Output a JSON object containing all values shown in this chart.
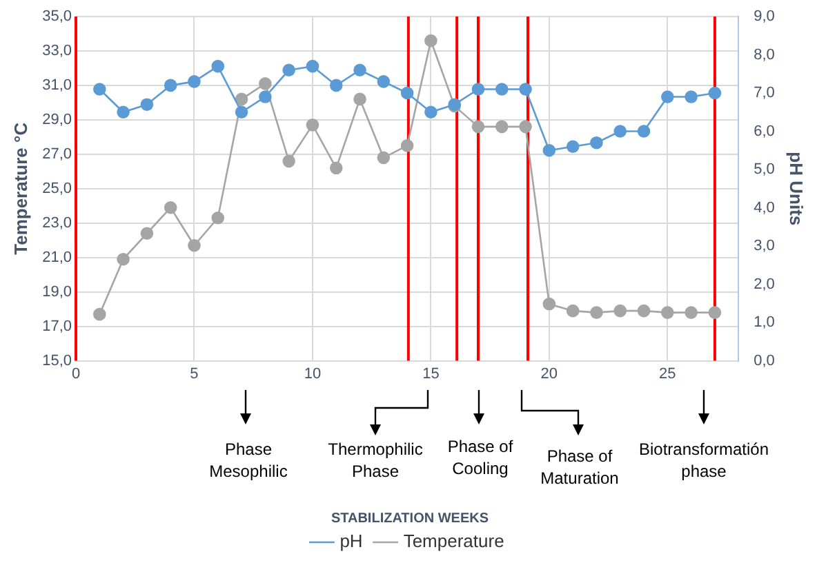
{
  "chart_data": {
    "type": "line",
    "ylabel": "Temperature °C",
    "y2label": "pH Units",
    "x": [
      1,
      2,
      3,
      4,
      5,
      6,
      7,
      8,
      9,
      10,
      11,
      12,
      13,
      14,
      15,
      16,
      17,
      18,
      19,
      20,
      21,
      22,
      23,
      24,
      25,
      26,
      27
    ],
    "series": [
      {
        "name": "Temperature",
        "color": "#a5a5a5",
        "values": [
          17.7,
          20.9,
          22.4,
          23.9,
          21.7,
          23.3,
          30.2,
          31.1,
          26.6,
          28.7,
          26.2,
          30.2,
          26.8,
          27.5,
          33.6,
          29.8,
          28.6,
          28.6,
          28.6,
          18.3,
          17.9,
          17.8,
          17.9,
          17.9,
          17.8,
          17.8,
          17.8
        ]
      },
      {
        "name": "pH",
        "color": "#5b9bd5",
        "axis": "y2",
        "values": [
          7.1,
          6.5,
          6.7,
          7.2,
          7.3,
          7.7,
          6.5,
          6.9,
          7.6,
          7.7,
          7.2,
          7.6,
          7.3,
          7.0,
          6.5,
          6.7,
          7.1,
          7.1,
          7.1,
          5.5,
          5.6,
          5.7,
          6.0,
          6.0,
          6.9,
          6.9,
          7.0
        ]
      }
    ],
    "xlim": [
      0,
      28
    ],
    "xticks": [
      0,
      5,
      10,
      15,
      20,
      25
    ],
    "ylim": [
      15,
      35
    ],
    "yticks": [
      {
        "value": 15,
        "label": "15,0"
      },
      {
        "value": 17,
        "label": "17,0"
      },
      {
        "value": 19,
        "label": "19,0"
      },
      {
        "value": 21,
        "label": "21,0"
      },
      {
        "value": 23,
        "label": "23,0"
      },
      {
        "value": 25,
        "label": "25,0"
      },
      {
        "value": 27,
        "label": "27,0"
      },
      {
        "value": 29,
        "label": "29,0"
      },
      {
        "value": 31,
        "label": "31,0"
      },
      {
        "value": 33,
        "label": "33,0"
      },
      {
        "value": 35,
        "label": "35,0"
      }
    ],
    "y2lim": [
      0,
      9
    ],
    "y2ticks": [
      {
        "value": 0,
        "label": "0,0"
      },
      {
        "value": 1,
        "label": "1,0"
      },
      {
        "value": 2,
        "label": "2,0"
      },
      {
        "value": 3,
        "label": "3,0"
      },
      {
        "value": 4,
        "label": "4,0"
      },
      {
        "value": 5,
        "label": "5,0"
      },
      {
        "value": 6,
        "label": "6,0"
      },
      {
        "value": 7,
        "label": "7,0"
      },
      {
        "value": 8,
        "label": "8,0"
      },
      {
        "value": 9,
        "label": "9,0"
      }
    ],
    "ref_lines": [
      {
        "axis": "x",
        "value": 0,
        "color": "#ff0000"
      },
      {
        "axis": "x",
        "value": 14.05,
        "color": "#ff0000"
      },
      {
        "axis": "x",
        "value": 16.1,
        "color": "#ff0000"
      },
      {
        "axis": "x",
        "value": 17,
        "color": "#ff0000"
      },
      {
        "axis": "x",
        "value": 19.1,
        "color": "#ff0000"
      },
      {
        "axis": "x",
        "value": 27,
        "color": "#ff0000"
      }
    ],
    "annotations": [
      "Phase\nMesophilic",
      "Thermophilic\nPhase",
      "Phase of\nCooling",
      "Phase of\nMaturation",
      "Biotransformatión\nphase",
      "STABILIZATION WEEKS"
    ],
    "grid": true,
    "legend": "bottom",
    "marker": "circle",
    "line_style": "solid"
  }
}
